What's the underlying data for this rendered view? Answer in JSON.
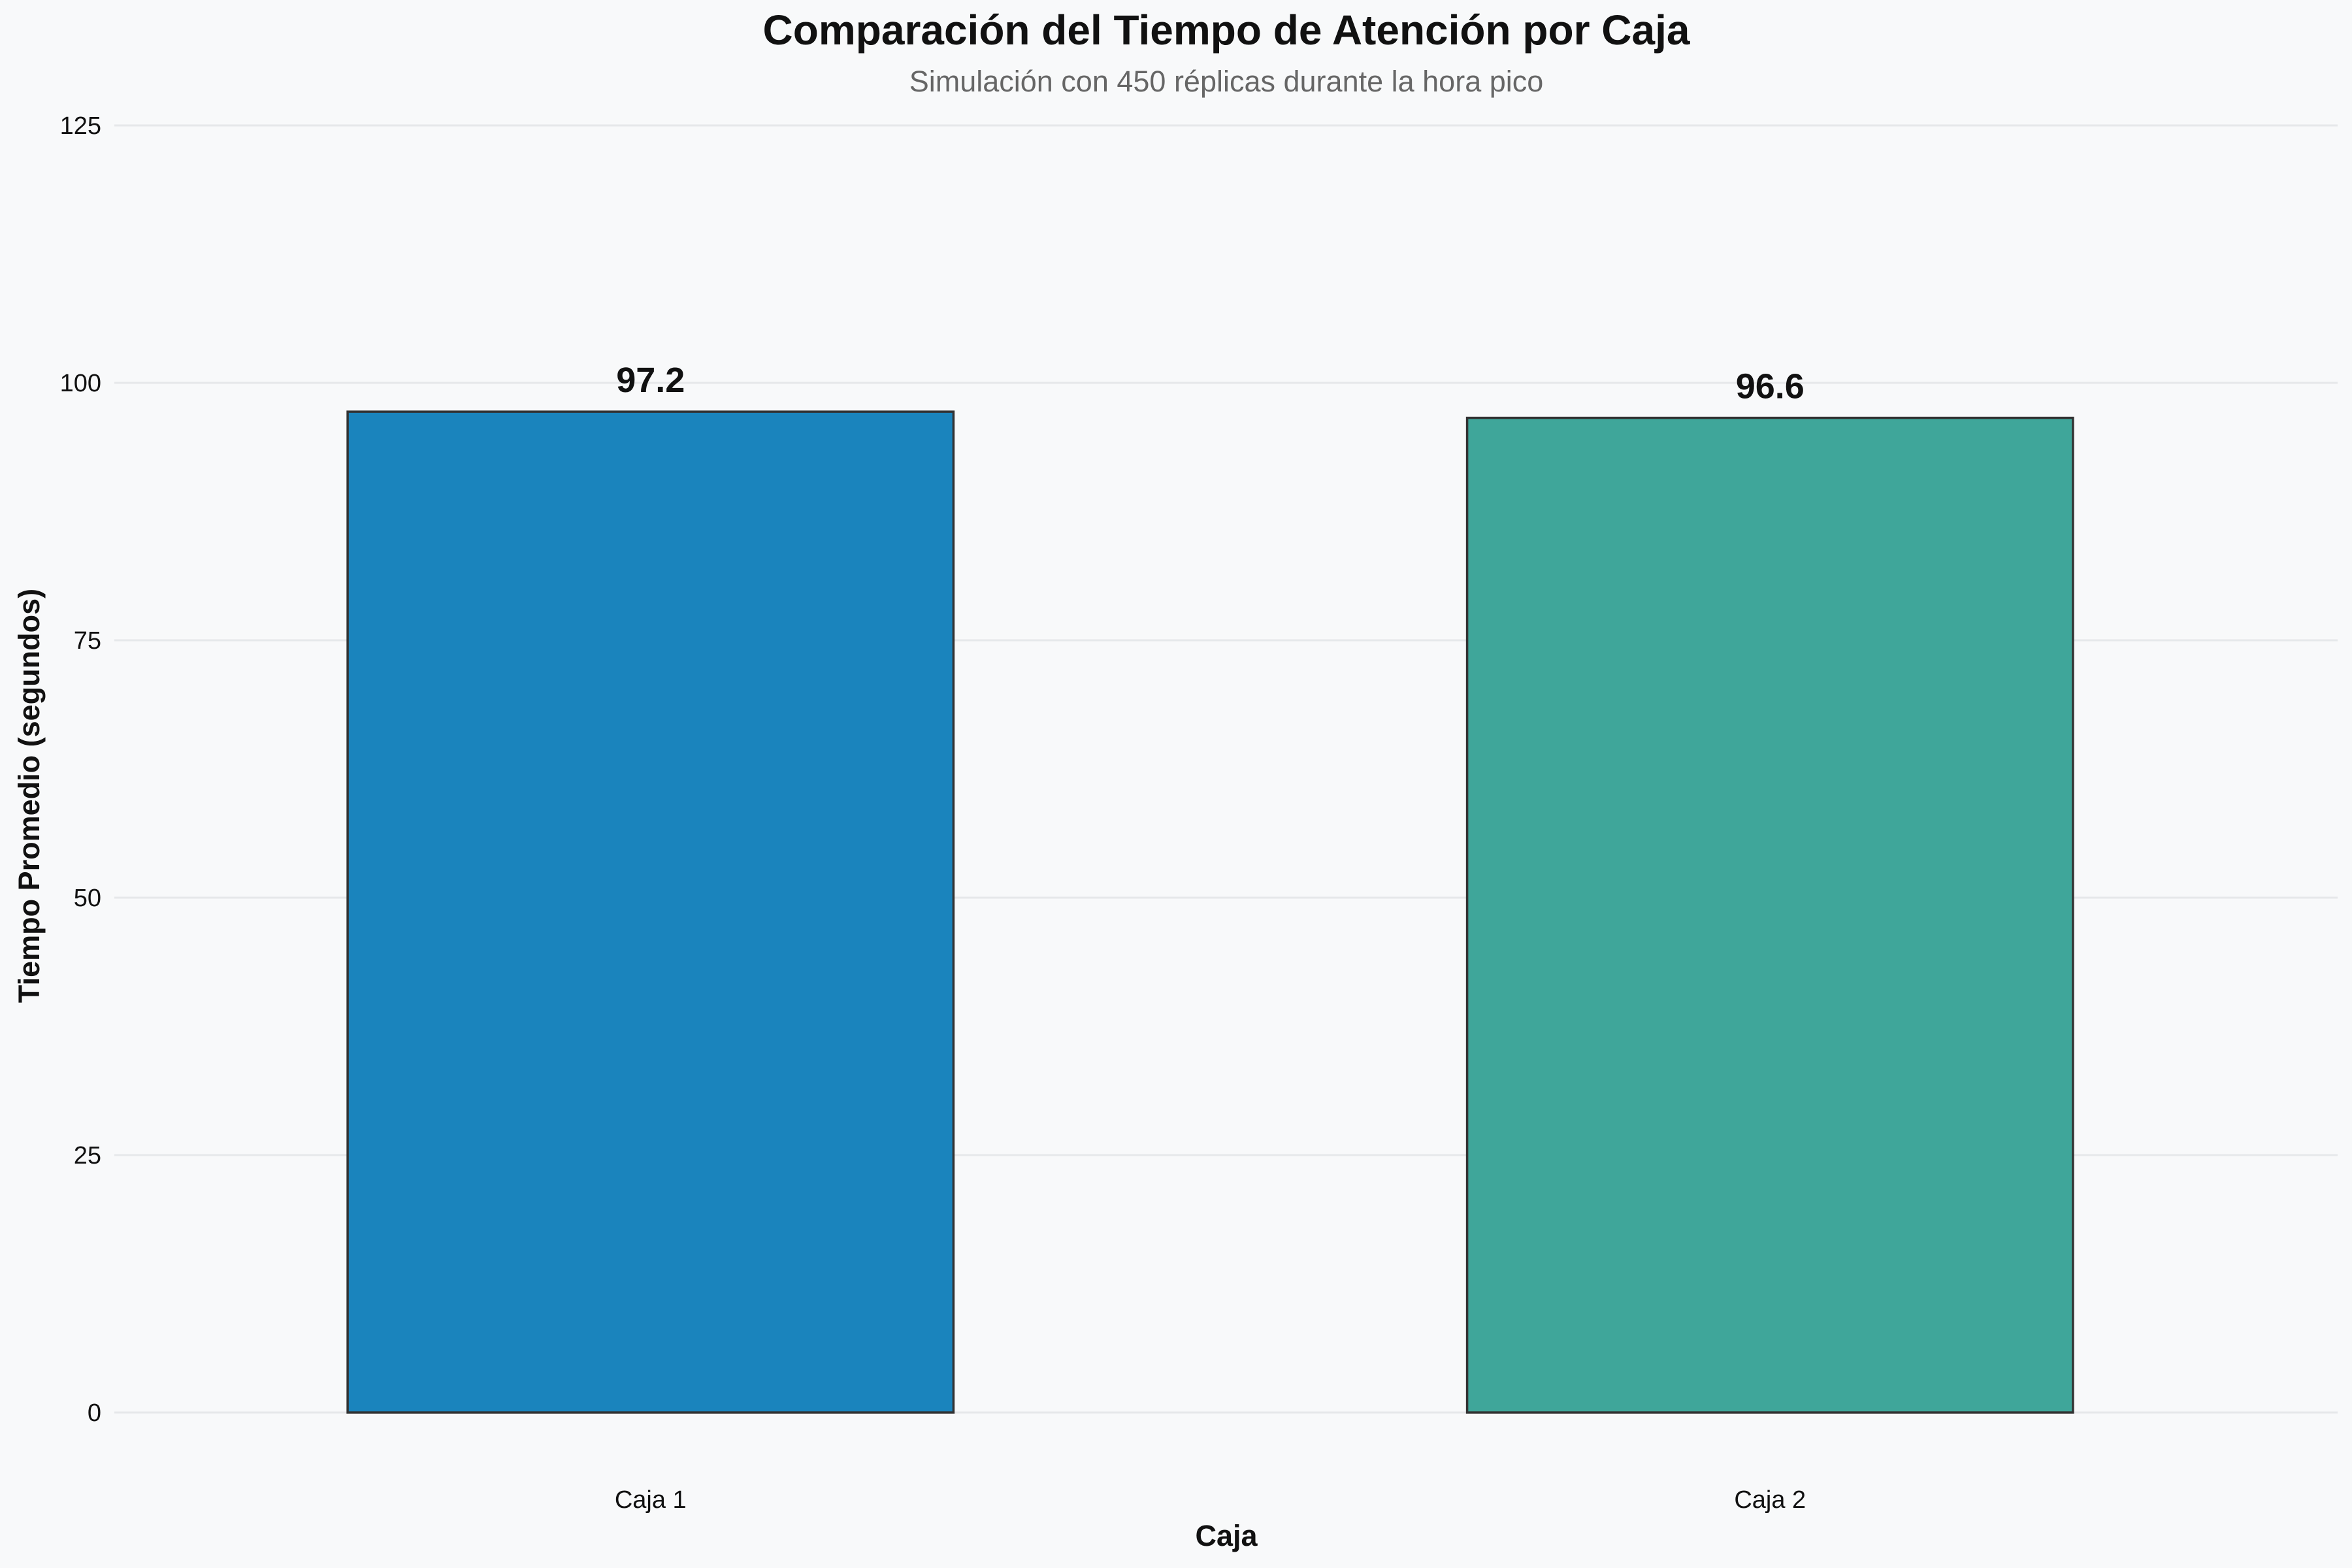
{
  "chart_data": {
    "type": "bar",
    "title": "Comparación del Tiempo de Atención por Caja",
    "subtitle": "Simulación con 450 réplicas durante la hora pico",
    "xlabel": "Caja",
    "ylabel": "Tiempo Promedio (segundos)",
    "categories": [
      "Caja 1",
      "Caja 2"
    ],
    "values": [
      97.2,
      96.6
    ],
    "data_labels": [
      "97.2",
      "96.6"
    ],
    "ylim": [
      0,
      125
    ],
    "yticks": [
      0,
      25,
      50,
      75,
      100,
      125
    ],
    "grid": true,
    "grid_axis": "y",
    "legend": "none",
    "colors": [
      "#1a84bd",
      "#3fa69a"
    ],
    "edge_color": "#333333",
    "background": "#f8f9fa"
  }
}
